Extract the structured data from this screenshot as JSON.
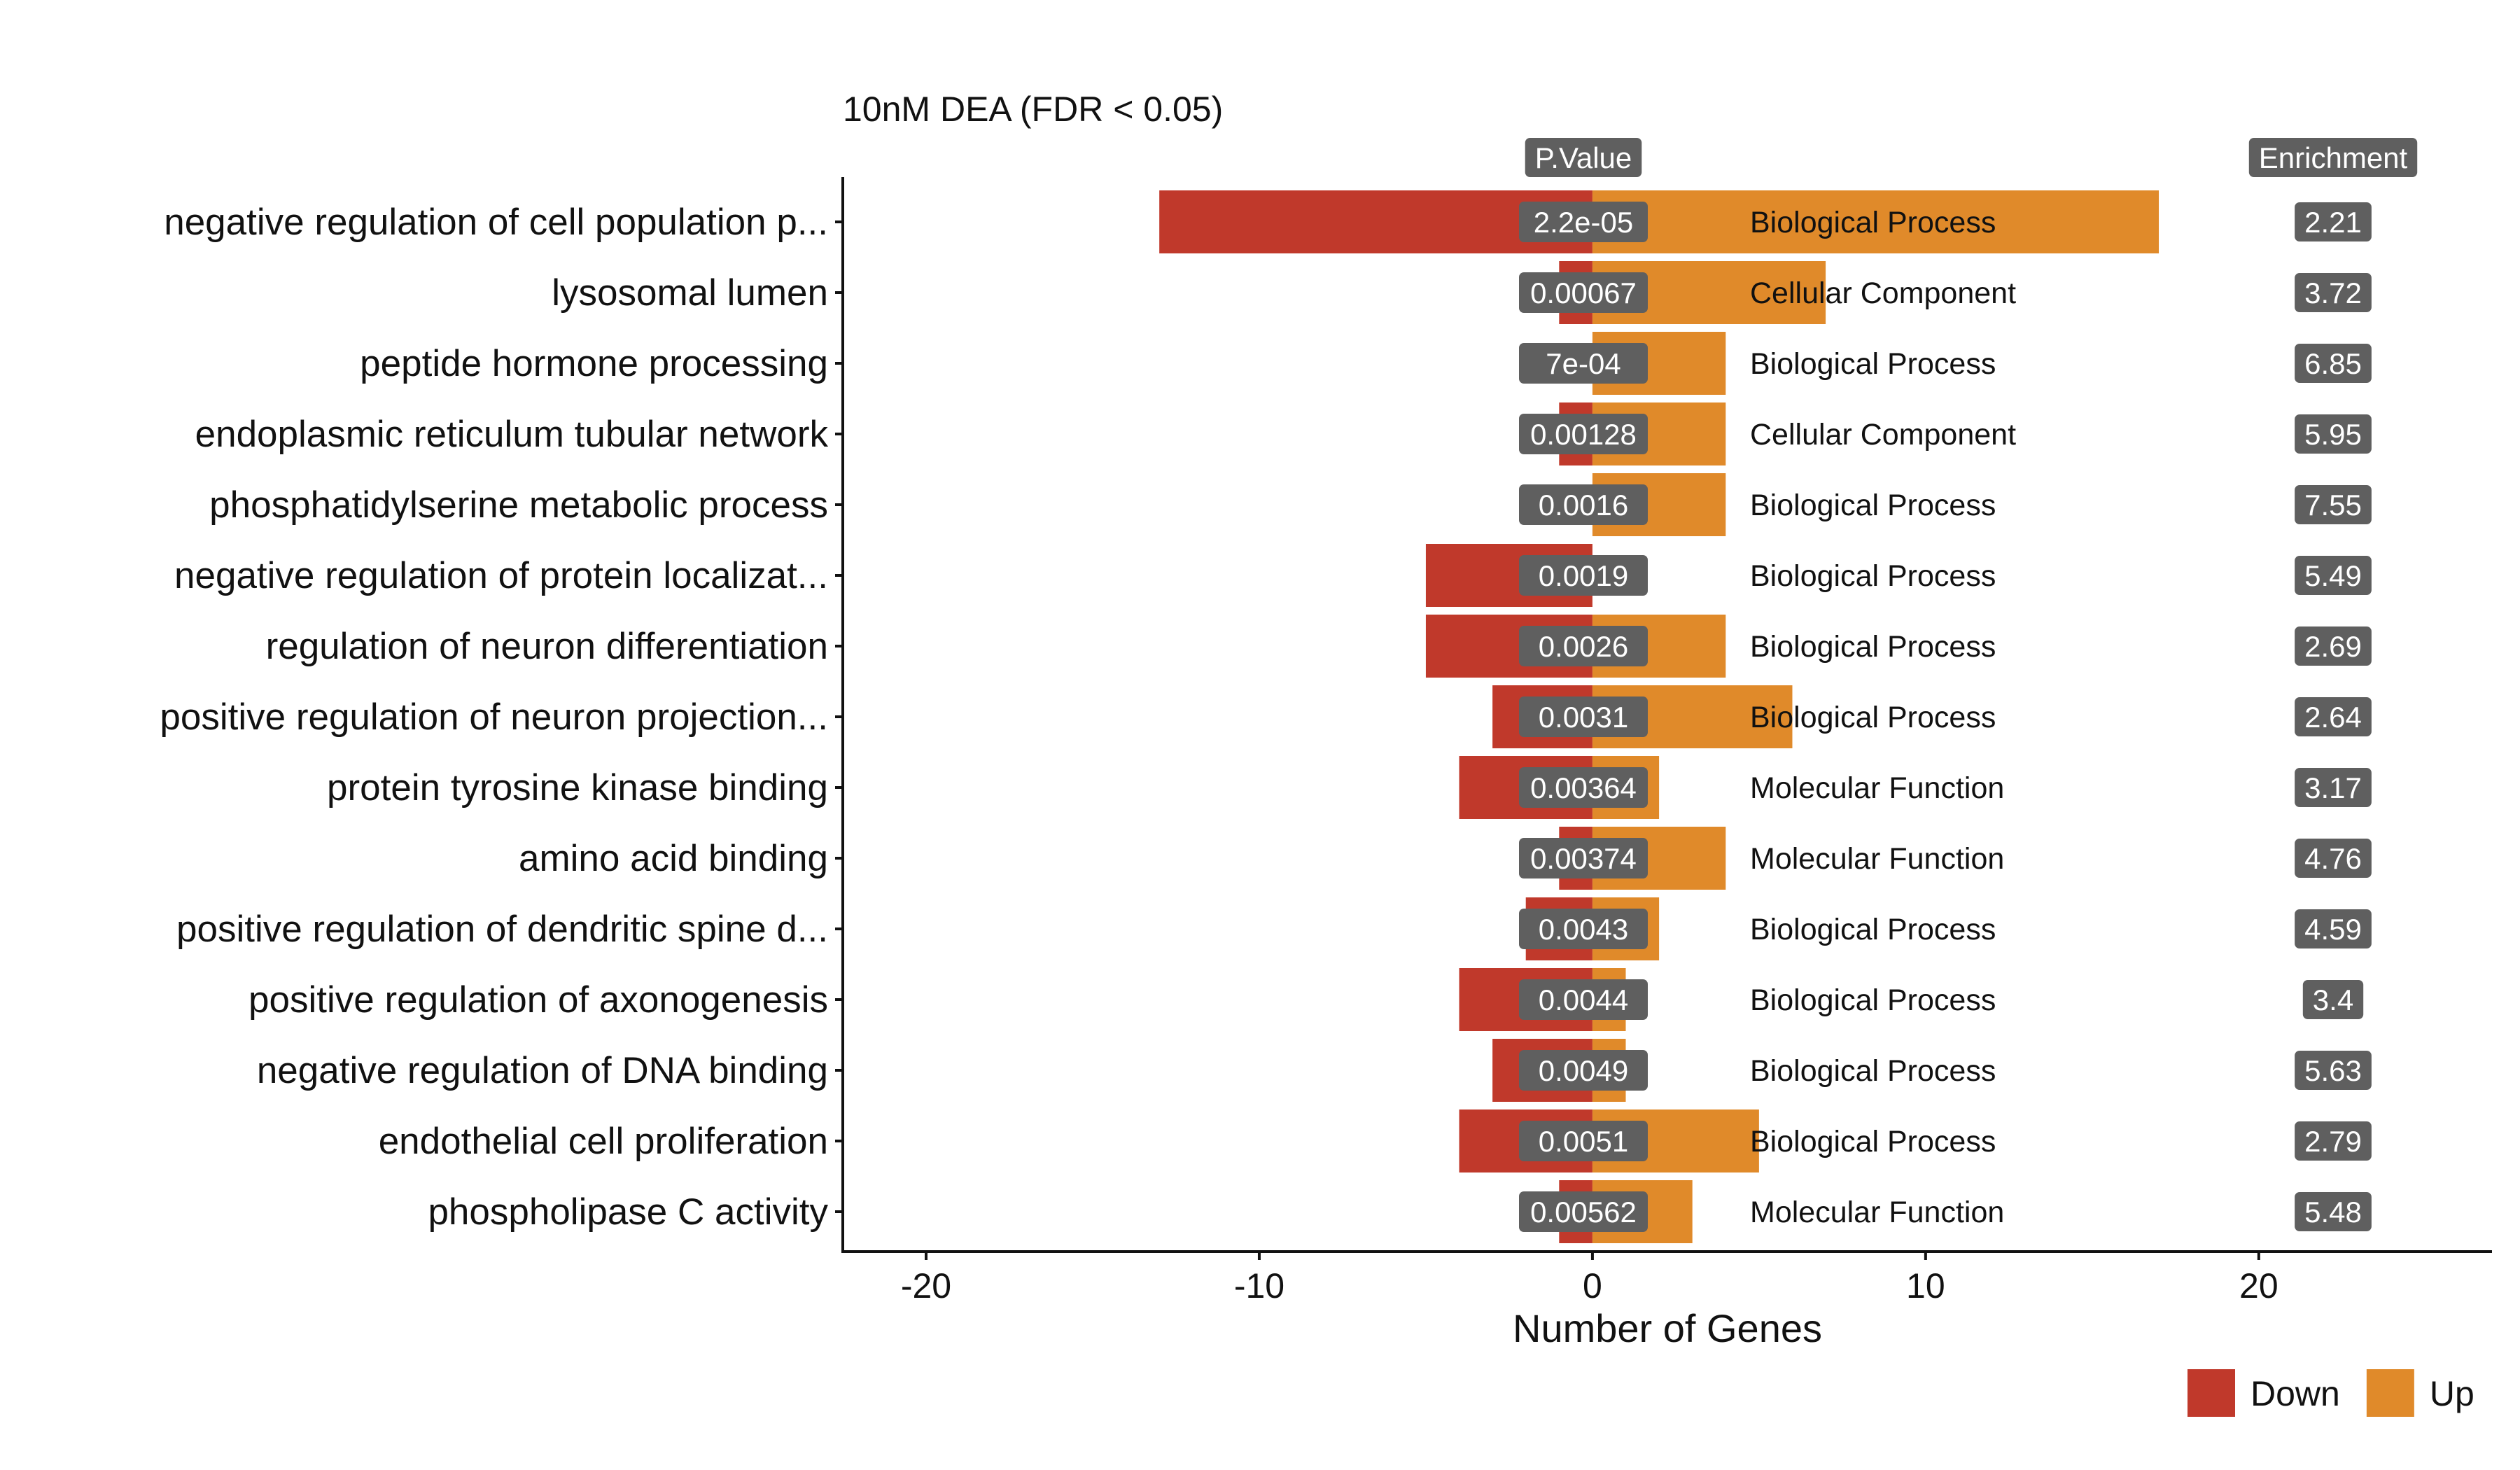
{
  "chart_data": {
    "type": "bar",
    "title": "10nM DEA (FDR < 0.05)",
    "xlabel": "Number of Genes",
    "ylabel": "",
    "xlim": [
      -22.5,
      27
    ],
    "x_ticks": [
      -20,
      -10,
      0,
      10,
      20
    ],
    "grid": false,
    "legend_position": "bottom-right",
    "pvalue_header": "P.Value",
    "enrichment_header": "Enrichment",
    "categories": [
      "negative regulation of cell population p...",
      "lysosomal lumen",
      "peptide hormone processing",
      "endoplasmic reticulum tubular network",
      "phosphatidylserine metabolic process",
      "negative regulation of protein localizat...",
      "regulation of neuron differentiation",
      "positive regulation of neuron projection...",
      "protein tyrosine kinase binding",
      "amino acid binding",
      "positive regulation of dendritic spine d...",
      "positive regulation of axonogenesis",
      "negative regulation of DNA binding",
      "endothelial cell proliferation",
      "phospholipase C activity"
    ],
    "series": [
      {
        "name": "Down",
        "color": "#C0392B",
        "values": [
          -13,
          -1,
          0,
          -1,
          0,
          -5,
          -5,
          -3,
          -4,
          -1,
          -2,
          -4,
          -3,
          -4,
          -1
        ]
      },
      {
        "name": "Up",
        "color": "#E08A2A",
        "values": [
          17,
          7,
          4,
          4,
          4,
          0,
          4,
          6,
          2,
          4,
          2,
          1,
          1,
          5,
          3
        ]
      }
    ],
    "p_values": [
      "2.2e-05",
      "0.00067",
      "7e-04",
      "0.00128",
      "0.0016",
      "0.0019",
      "0.0026",
      "0.0031",
      "0.00364",
      "0.00374",
      "0.0043",
      "0.0044",
      "0.0049",
      "0.0051",
      "0.00562"
    ],
    "go_types": [
      "Biological Process",
      "Cellular Component",
      "Biological Process",
      "Cellular Component",
      "Biological Process",
      "Biological Process",
      "Biological Process",
      "Biological Process",
      "Molecular Function",
      "Molecular Function",
      "Biological Process",
      "Biological Process",
      "Biological Process",
      "Biological Process",
      "Molecular Function"
    ],
    "enrichment": [
      "2.21",
      "3.72",
      "6.85",
      "5.95",
      "7.55",
      "5.49",
      "2.69",
      "2.64",
      "3.17",
      "4.76",
      "4.59",
      "3.4",
      "5.63",
      "2.79",
      "5.48"
    ],
    "pill_color": "#5F5F5F"
  }
}
